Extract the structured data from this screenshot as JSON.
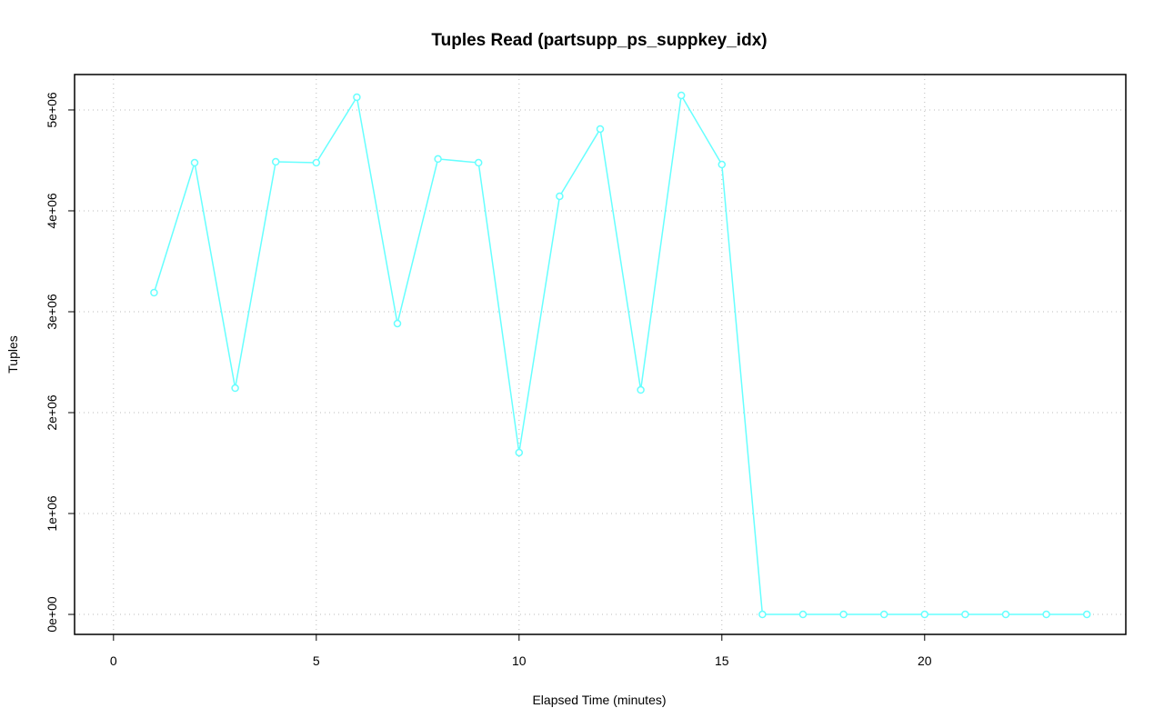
{
  "chart_data": {
    "type": "line",
    "title": "Tuples Read (partsupp_ps_suppkey_idx)",
    "x_label": "Elapsed Time (minutes)",
    "y_label": "Tuples",
    "x": [
      1,
      2,
      3,
      4,
      5,
      6,
      7,
      8,
      9,
      10,
      11,
      12,
      13,
      14,
      15,
      16,
      17,
      18,
      19,
      20,
      21,
      22,
      23,
      24
    ],
    "series": [
      {
        "name": "partsupp_ps_suppkey_idx",
        "color": "#66ffff",
        "values": [
          3189000,
          4477000,
          2243000,
          4486000,
          4477000,
          5126000,
          2883000,
          4514000,
          4477000,
          1604000,
          4144000,
          4811000,
          2225000,
          5144000,
          4459000,
          0,
          0,
          0,
          0,
          0,
          0,
          0,
          0,
          0
        ]
      }
    ],
    "xlim": [
      -0.96,
      24.96
    ],
    "xticks": [
      0,
      5,
      10,
      15,
      20
    ],
    "ylim": [
      -198000,
      5351000
    ],
    "yticks": [
      {
        "value": 0,
        "label": "0e+00"
      },
      {
        "value": 1000000,
        "label": "1e+06"
      },
      {
        "value": 2000000,
        "label": "2e+06"
      },
      {
        "value": 3000000,
        "label": "3e+06"
      },
      {
        "value": 4000000,
        "label": "4e+06"
      },
      {
        "value": 5000000,
        "label": "5e+06"
      }
    ],
    "grid": true
  }
}
